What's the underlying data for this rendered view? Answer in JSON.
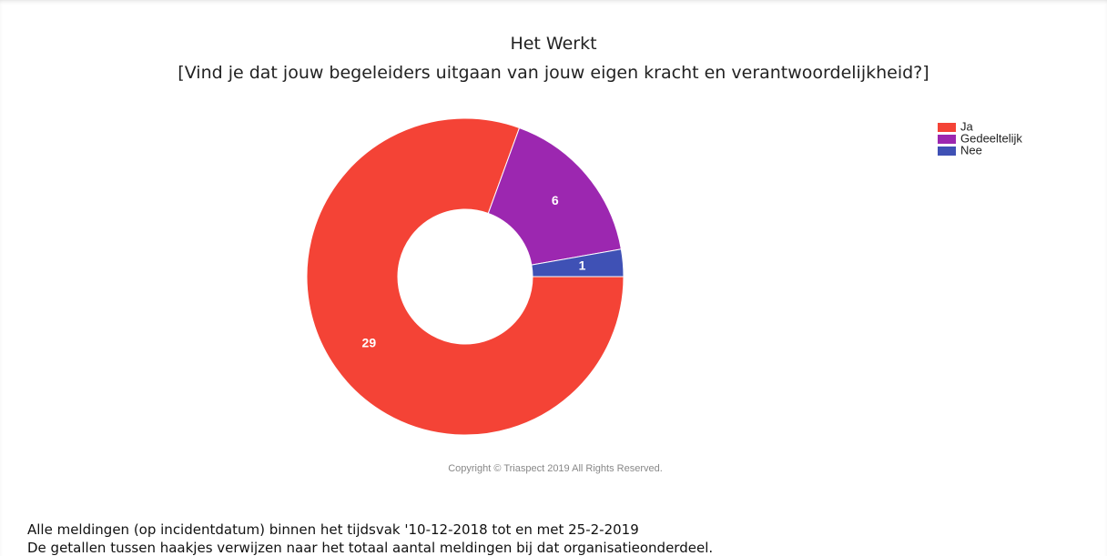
{
  "chart_data": {
    "type": "donut",
    "title": "Het Werkt",
    "subtitle": "[Vind je dat jouw begeleiders uitgaan van jouw eigen kracht en verantwoordelijkheid?]",
    "categories": [
      "Ja",
      "Gedeeltelijk",
      "Nee"
    ],
    "values": [
      29,
      6,
      1
    ],
    "colors": [
      "#f44336",
      "#9c27b0",
      "#3f51b5"
    ],
    "legend": "top-right",
    "copyright": "Copyright © Triaspect 2019 All Rights Reserved."
  },
  "notes": [
    "Alle meldingen (op incidentdatum) binnen het tijdsvak '10-12-2018 tot en met 25-2-2019",
    "De getallen tussen haakjes verwijzen naar het totaal aantal meldingen bij dat organisatieonderdeel."
  ]
}
